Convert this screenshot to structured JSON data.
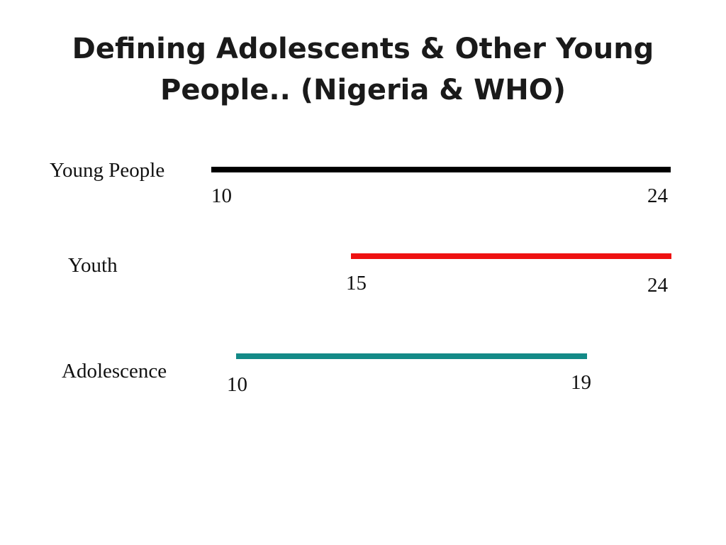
{
  "title": {
    "line1": "Defining Adolescents & Other Young",
    "line2": "People.. (Nigeria & WHO)"
  },
  "ranges": [
    {
      "label": "Young People",
      "start": "10",
      "end": "24",
      "color": "#000000"
    },
    {
      "label": "Youth",
      "start": "15",
      "end": "24",
      "color": "#ee1111"
    },
    {
      "label": "Adolescence",
      "start": "10",
      "end": "19",
      "color": "#138a87"
    }
  ]
}
